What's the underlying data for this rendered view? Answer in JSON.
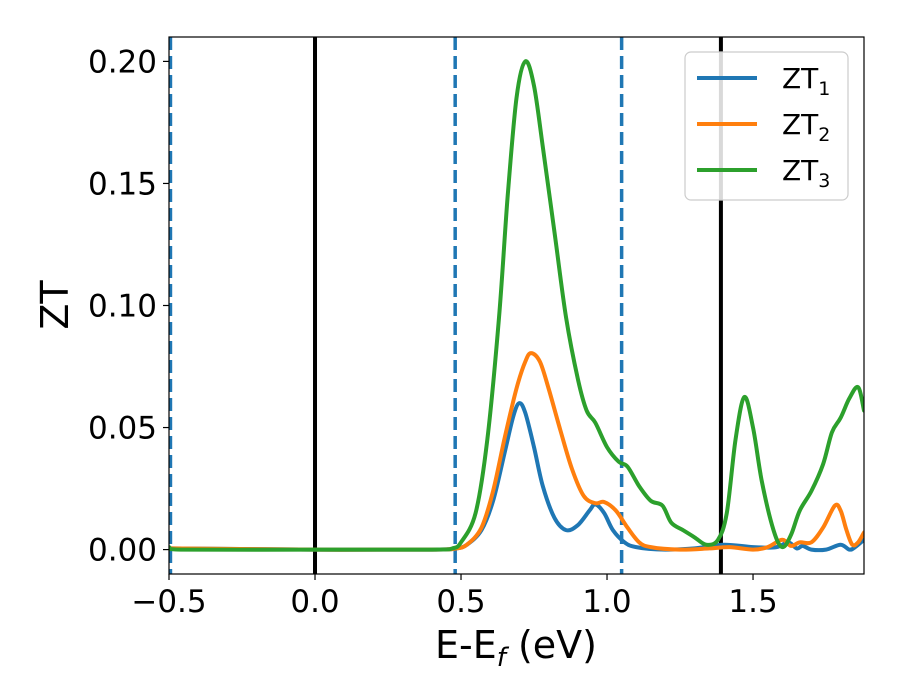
{
  "chart_data": {
    "type": "line",
    "xlabel": "E-E",
    "xlabel_sub": "f",
    "xlabel_unit": " (eV)",
    "ylabel": "ZT",
    "xlim": [
      -0.5,
      1.88
    ],
    "ylim": [
      -0.01,
      0.21
    ],
    "x_ticks": [
      -0.5,
      0.0,
      0.5,
      1.0,
      1.5
    ],
    "x_tick_labels": [
      "−0.5",
      "0.0",
      "0.5",
      "1.0",
      "1.5"
    ],
    "y_ticks": [
      0.0,
      0.05,
      0.1,
      0.15,
      0.2
    ],
    "y_tick_labels": [
      "0.00",
      "0.05",
      "0.10",
      "0.15",
      "0.20"
    ],
    "grid": false,
    "legend_position": "top-right",
    "vlines": [
      {
        "x": -0.495,
        "style": "dashed",
        "color": "#1f77b4"
      },
      {
        "x": 0.0,
        "style": "solid",
        "color": "#000000"
      },
      {
        "x": 0.48,
        "style": "dashed",
        "color": "#1f77b4"
      },
      {
        "x": 1.05,
        "style": "dashed",
        "color": "#1f77b4"
      },
      {
        "x": 1.39,
        "style": "solid",
        "color": "#000000"
      }
    ],
    "series": [
      {
        "name": "ZT",
        "name_sub": "1",
        "color": "#1f77b4",
        "points": [
          [
            -0.5,
            0.0005
          ],
          [
            0.0,
            0.0
          ],
          [
            0.4,
            0.0
          ],
          [
            0.48,
            0.0004
          ],
          [
            0.52,
            0.002
          ],
          [
            0.57,
            0.008
          ],
          [
            0.61,
            0.02
          ],
          [
            0.65,
            0.04
          ],
          [
            0.68,
            0.055
          ],
          [
            0.7,
            0.06
          ],
          [
            0.72,
            0.056
          ],
          [
            0.75,
            0.042
          ],
          [
            0.78,
            0.026
          ],
          [
            0.82,
            0.013
          ],
          [
            0.86,
            0.008
          ],
          [
            0.9,
            0.01
          ],
          [
            0.94,
            0.016
          ],
          [
            0.96,
            0.0185
          ],
          [
            0.99,
            0.015
          ],
          [
            1.02,
            0.008
          ],
          [
            1.06,
            0.003
          ],
          [
            1.1,
            0.001
          ],
          [
            1.2,
            0.0
          ],
          [
            1.3,
            0.0005
          ],
          [
            1.4,
            0.002
          ],
          [
            1.5,
            0.001
          ],
          [
            1.58,
            0.001
          ],
          [
            1.62,
            0.003
          ],
          [
            1.65,
            0.0005
          ],
          [
            1.67,
            0.0015
          ],
          [
            1.7,
            0.0
          ],
          [
            1.75,
            0.0
          ],
          [
            1.8,
            0.002
          ],
          [
            1.83,
            0.0
          ],
          [
            1.85,
            0.001
          ],
          [
            1.88,
            0.004
          ]
        ]
      },
      {
        "name": "ZT",
        "name_sub": "2",
        "color": "#ff7f0e",
        "points": [
          [
            -0.5,
            0.0005
          ],
          [
            0.0,
            0.0
          ],
          [
            0.4,
            0.0
          ],
          [
            0.48,
            0.0004
          ],
          [
            0.52,
            0.002
          ],
          [
            0.57,
            0.009
          ],
          [
            0.61,
            0.024
          ],
          [
            0.65,
            0.046
          ],
          [
            0.69,
            0.066
          ],
          [
            0.72,
            0.077
          ],
          [
            0.74,
            0.0805
          ],
          [
            0.77,
            0.077
          ],
          [
            0.8,
            0.066
          ],
          [
            0.84,
            0.049
          ],
          [
            0.88,
            0.033
          ],
          [
            0.92,
            0.022
          ],
          [
            0.96,
            0.019
          ],
          [
            0.99,
            0.0195
          ],
          [
            1.03,
            0.016
          ],
          [
            1.07,
            0.009
          ],
          [
            1.11,
            0.003
          ],
          [
            1.15,
            0.001
          ],
          [
            1.25,
            0.0
          ],
          [
            1.35,
            0.0005
          ],
          [
            1.42,
            0.001
          ],
          [
            1.5,
            0.0
          ],
          [
            1.55,
            0.001
          ],
          [
            1.6,
            0.004
          ],
          [
            1.63,
            0.0015
          ],
          [
            1.66,
            0.003
          ],
          [
            1.7,
            0.003
          ],
          [
            1.74,
            0.009
          ],
          [
            1.78,
            0.018
          ],
          [
            1.8,
            0.016
          ],
          [
            1.82,
            0.008
          ],
          [
            1.84,
            0.002
          ],
          [
            1.86,
            0.003
          ],
          [
            1.88,
            0.007
          ]
        ]
      },
      {
        "name": "ZT",
        "name_sub": "3",
        "color": "#2ca02c",
        "points": [
          [
            -0.5,
            0.001
          ],
          [
            -0.45,
            0.0
          ],
          [
            0.0,
            0.0
          ],
          [
            0.4,
            0.0
          ],
          [
            0.47,
            0.0005
          ],
          [
            0.5,
            0.003
          ],
          [
            0.55,
            0.015
          ],
          [
            0.59,
            0.045
          ],
          [
            0.63,
            0.095
          ],
          [
            0.66,
            0.145
          ],
          [
            0.69,
            0.185
          ],
          [
            0.72,
            0.2
          ],
          [
            0.75,
            0.19
          ],
          [
            0.78,
            0.165
          ],
          [
            0.82,
            0.13
          ],
          [
            0.86,
            0.095
          ],
          [
            0.9,
            0.07
          ],
          [
            0.93,
            0.057
          ],
          [
            0.96,
            0.052
          ],
          [
            1.0,
            0.042
          ],
          [
            1.04,
            0.036
          ],
          [
            1.07,
            0.034
          ],
          [
            1.11,
            0.026
          ],
          [
            1.15,
            0.02
          ],
          [
            1.19,
            0.018
          ],
          [
            1.22,
            0.011
          ],
          [
            1.26,
            0.008
          ],
          [
            1.3,
            0.005
          ],
          [
            1.34,
            0.002
          ],
          [
            1.38,
            0.004
          ],
          [
            1.41,
            0.015
          ],
          [
            1.44,
            0.045
          ],
          [
            1.47,
            0.0625
          ],
          [
            1.5,
            0.05
          ],
          [
            1.53,
            0.028
          ],
          [
            1.57,
            0.008
          ],
          [
            1.6,
            0.001
          ],
          [
            1.63,
            0.006
          ],
          [
            1.66,
            0.016
          ],
          [
            1.7,
            0.024
          ],
          [
            1.74,
            0.035
          ],
          [
            1.77,
            0.048
          ],
          [
            1.8,
            0.054
          ],
          [
            1.83,
            0.062
          ],
          [
            1.86,
            0.0665
          ],
          [
            1.88,
            0.057
          ]
        ]
      }
    ]
  }
}
